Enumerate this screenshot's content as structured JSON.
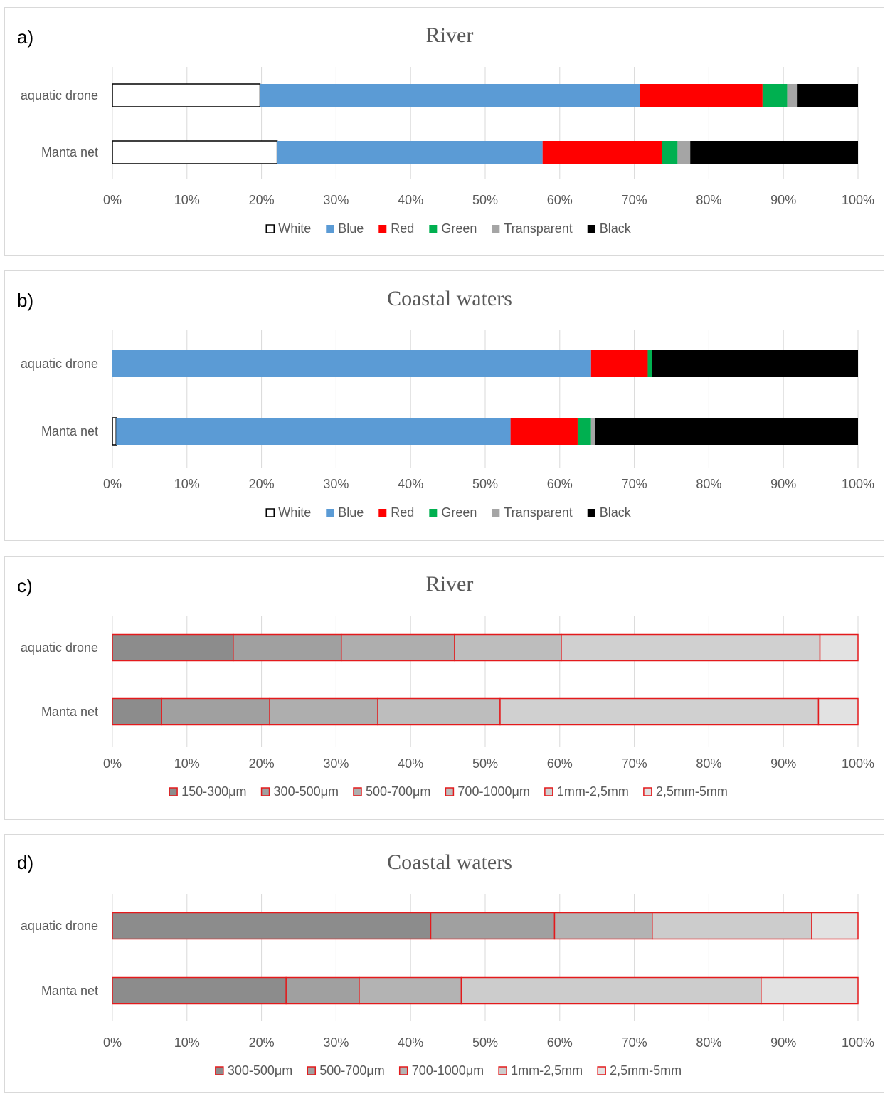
{
  "chart_data": [
    {
      "type": "bar",
      "orientation": "horizontal",
      "stacked": "percent",
      "panel_label": "a)",
      "title": "River",
      "categories": [
        "aquatic drone",
        "Manta net"
      ],
      "xlim": [
        0,
        100
      ],
      "x_ticks": [
        "0%",
        "10%",
        "20%",
        "30%",
        "40%",
        "50%",
        "60%",
        "70%",
        "80%",
        "90%",
        "100%"
      ],
      "grid": true,
      "legend_position": "bottom",
      "bar_edge_color": "",
      "series": [
        {
          "name": "White",
          "color": "#ffffff",
          "values": [
            19.8,
            22.1
          ]
        },
        {
          "name": "Blue",
          "color": "#5b9bd5",
          "values": [
            51.0,
            35.6
          ]
        },
        {
          "name": "Red",
          "color": "#ff0000",
          "values": [
            16.4,
            16.0
          ]
        },
        {
          "name": "Green",
          "color": "#00b050",
          "values": [
            3.3,
            2.1
          ]
        },
        {
          "name": "Transparent",
          "color": "#a5a5a5",
          "values": [
            1.4,
            1.7
          ]
        },
        {
          "name": "Black",
          "color": "#000000",
          "values": [
            8.1,
            22.5
          ]
        }
      ]
    },
    {
      "type": "bar",
      "orientation": "horizontal",
      "stacked": "percent",
      "panel_label": "b)",
      "title": "Coastal waters",
      "categories": [
        "aquatic drone",
        "Manta net"
      ],
      "xlim": [
        0,
        100
      ],
      "x_ticks": [
        "0%",
        "10%",
        "20%",
        "30%",
        "40%",
        "50%",
        "60%",
        "70%",
        "80%",
        "90%",
        "100%"
      ],
      "grid": true,
      "legend_position": "bottom",
      "bar_edge_color": "",
      "series": [
        {
          "name": "White",
          "color": "#ffffff",
          "values": [
            0,
            0.5
          ]
        },
        {
          "name": "Blue",
          "color": "#5b9bd5",
          "values": [
            64.2,
            52.9
          ]
        },
        {
          "name": "Red",
          "color": "#ff0000",
          "values": [
            7.6,
            9.0
          ]
        },
        {
          "name": "Green",
          "color": "#00b050",
          "values": [
            0.6,
            1.8
          ]
        },
        {
          "name": "Transparent",
          "color": "#a5a5a5",
          "values": [
            0,
            0.5
          ]
        },
        {
          "name": "Black",
          "color": "#000000",
          "values": [
            27.6,
            35.3
          ]
        }
      ]
    },
    {
      "type": "bar",
      "orientation": "horizontal",
      "stacked": "percent",
      "panel_label": "c)",
      "title": "River",
      "categories": [
        "aquatic drone",
        "Manta net"
      ],
      "xlim": [
        0,
        100
      ],
      "x_ticks": [
        "0%",
        "10%",
        "20%",
        "30%",
        "40%",
        "50%",
        "60%",
        "70%",
        "80%",
        "90%",
        "100%"
      ],
      "grid": true,
      "legend_position": "bottom",
      "bar_edge_color": "#e31a1c",
      "series": [
        {
          "name": "150-300μm",
          "color": "#8c8c8c",
          "values": [
            16.2,
            6.6
          ]
        },
        {
          "name": "300-500μm",
          "color": "#a0a0a0",
          "values": [
            14.5,
            14.5
          ]
        },
        {
          "name": "500-700μm",
          "color": "#aeaeae",
          "values": [
            15.2,
            14.5
          ]
        },
        {
          "name": "700-1000μm",
          "color": "#bdbdbd",
          "values": [
            14.3,
            16.4
          ]
        },
        {
          "name": "1mm-2,5mm",
          "color": "#d0d0d0",
          "values": [
            34.7,
            42.7
          ]
        },
        {
          "name": "2,5mm-5mm",
          "color": "#e2e2e2",
          "values": [
            5.1,
            5.3
          ]
        }
      ]
    },
    {
      "type": "bar",
      "orientation": "horizontal",
      "stacked": "percent",
      "panel_label": "d)",
      "title": "Coastal waters",
      "categories": [
        "aquatic drone",
        "Manta net"
      ],
      "xlim": [
        0,
        100
      ],
      "x_ticks": [
        "0%",
        "10%",
        "20%",
        "30%",
        "40%",
        "50%",
        "60%",
        "70%",
        "80%",
        "90%",
        "100%"
      ],
      "grid": true,
      "legend_position": "bottom",
      "bar_edge_color": "#e31a1c",
      "series": [
        {
          "name": "300-500μm",
          "color": "#8c8c8c",
          "values": [
            42.7,
            23.3
          ]
        },
        {
          "name": "500-700μm",
          "color": "#a0a0a0",
          "values": [
            16.6,
            9.8
          ]
        },
        {
          "name": "700-1000μm",
          "color": "#b3b3b3",
          "values": [
            13.1,
            13.7
          ]
        },
        {
          "name": "1mm-2,5mm",
          "color": "#cccccc",
          "values": [
            21.4,
            40.2
          ]
        },
        {
          "name": "2,5mm-5mm",
          "color": "#e2e2e2",
          "values": [
            6.2,
            13.0
          ]
        }
      ]
    }
  ]
}
